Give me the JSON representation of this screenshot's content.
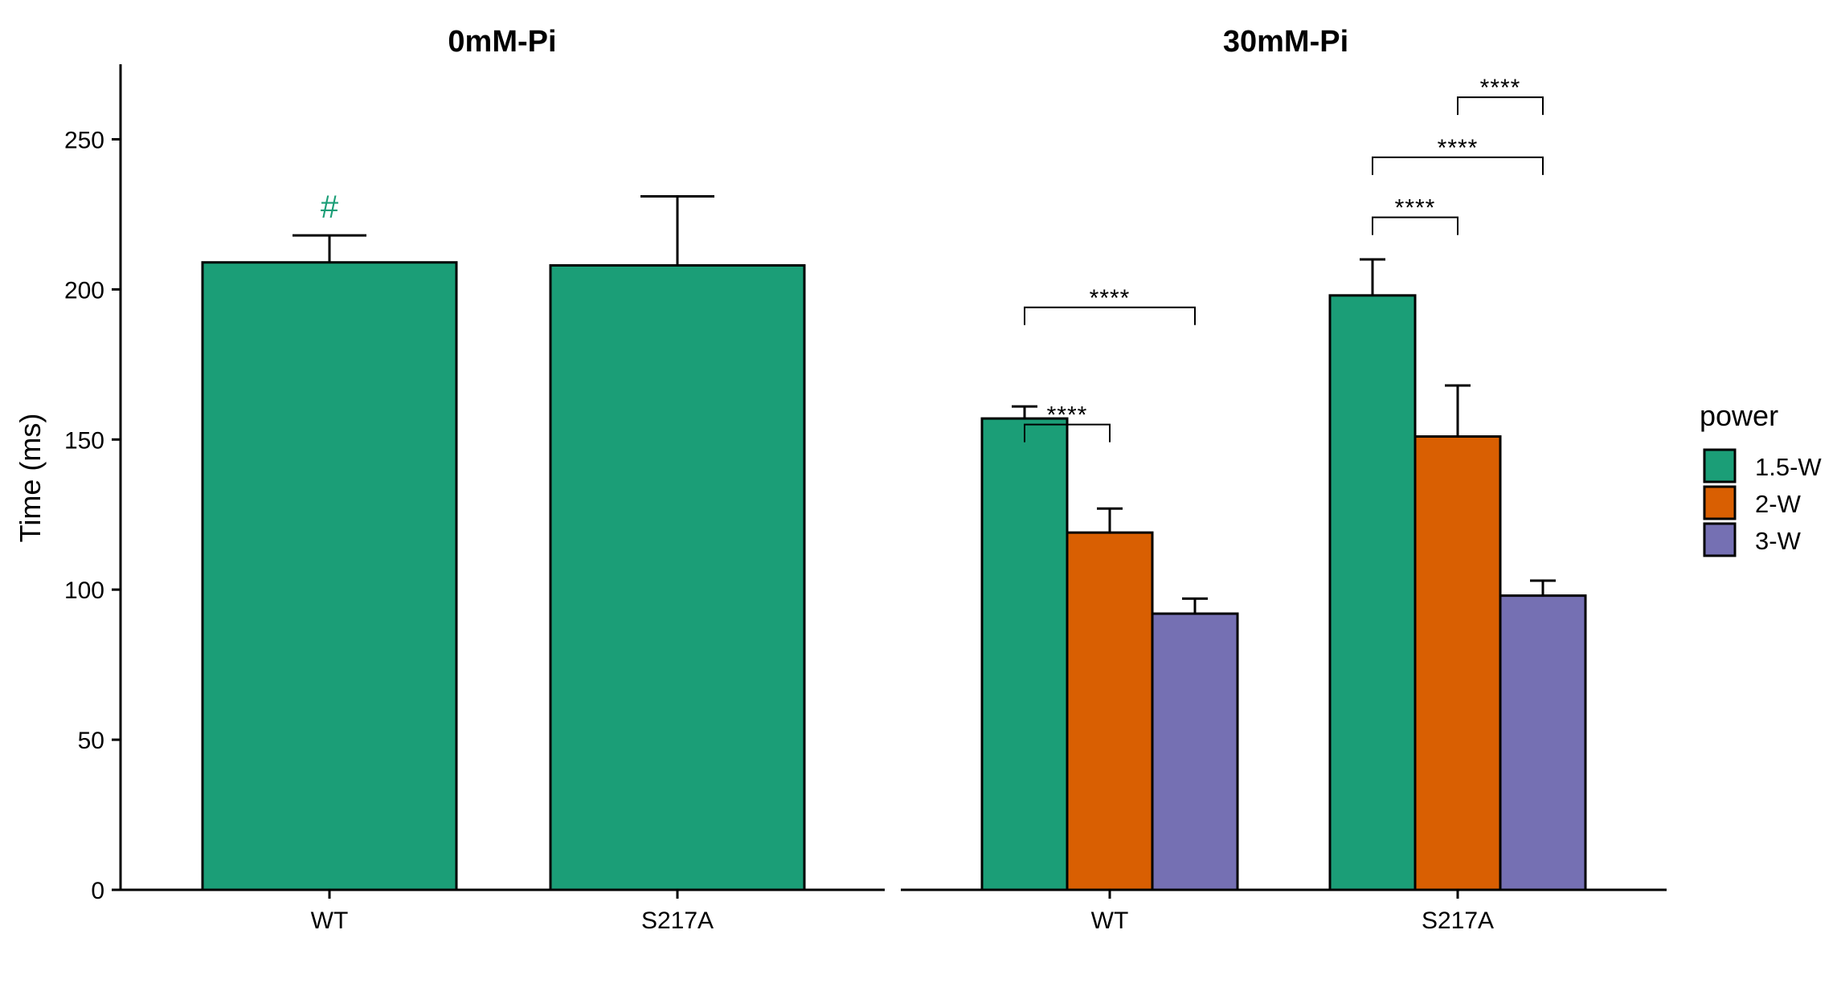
{
  "chart_data": {
    "type": "bar",
    "ylabel": "Time (ms)",
    "ylim": [
      0,
      275
    ],
    "yticks": [
      0,
      50,
      100,
      150,
      200,
      250
    ],
    "grid": false,
    "legend": {
      "title": "power",
      "position": "right",
      "entries": [
        {
          "label": "1.5-W",
          "color": "#1b9e77"
        },
        {
          "label": "2-W",
          "color": "#d95f02"
        },
        {
          "label": "3-W",
          "color": "#7570b3"
        }
      ]
    },
    "facets": [
      {
        "title": "0mM-Pi",
        "categories": [
          "WT",
          "S217A"
        ],
        "series": [
          {
            "name": "1.5-W",
            "values": [
              209,
              208
            ],
            "errors": [
              9,
              23
            ]
          }
        ],
        "annotations": [
          {
            "text": "#",
            "category": "WT",
            "series": "1.5-W",
            "color": "#1b9e77"
          }
        ]
      },
      {
        "title": "30mM-Pi",
        "categories": [
          "WT",
          "S217A"
        ],
        "series": [
          {
            "name": "1.5-W",
            "values": [
              157,
              198
            ],
            "errors": [
              4,
              12
            ]
          },
          {
            "name": "2-W",
            "values": [
              119,
              151
            ],
            "errors": [
              8,
              17
            ]
          },
          {
            "name": "3-W",
            "values": [
              92,
              98
            ],
            "errors": [
              5,
              5
            ]
          }
        ],
        "brackets": [
          {
            "category": "WT",
            "from": "1.5-W",
            "to": "2-W",
            "level": 155,
            "label": "****"
          },
          {
            "category": "WT",
            "from": "1.5-W",
            "to": "3-W",
            "level": 194,
            "label": "****"
          },
          {
            "category": "S217A",
            "from": "1.5-W",
            "to": "2-W",
            "level": 224,
            "label": "****"
          },
          {
            "category": "S217A",
            "from": "1.5-W",
            "to": "3-W",
            "level": 244,
            "label": "****"
          },
          {
            "category": "S217A",
            "from": "2-W",
            "to": "3-W",
            "level": 264,
            "label": "****"
          }
        ]
      }
    ]
  }
}
